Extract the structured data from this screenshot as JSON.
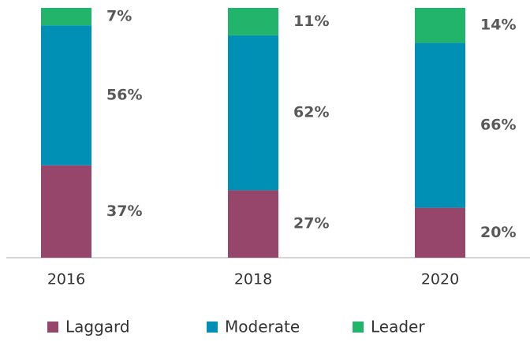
{
  "chart_data": {
    "type": "stacked_bar",
    "categories": [
      "2016",
      "2018",
      "2020"
    ],
    "series": [
      {
        "name": "Laggard",
        "color": "#96456b",
        "values": [
          37,
          27,
          20
        ],
        "value_labels": [
          "37%",
          "27%",
          "20%"
        ]
      },
      {
        "name": "Moderate",
        "color": "#008fb5",
        "values": [
          56,
          62,
          66
        ],
        "value_labels": [
          "56%",
          "62%",
          "66%"
        ]
      },
      {
        "name": "Leader",
        "color": "#22b46a",
        "values": [
          7,
          11,
          14
        ],
        "value_labels": [
          "7%",
          "11%",
          "14%"
        ]
      }
    ]
  }
}
